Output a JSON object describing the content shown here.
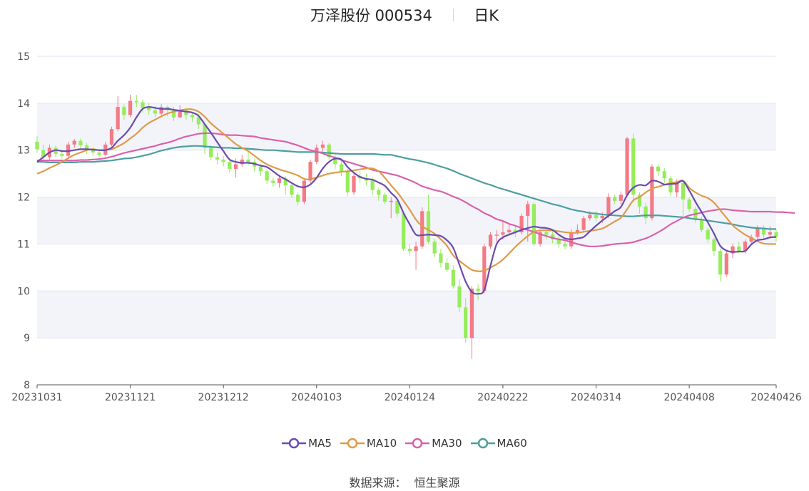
{
  "header": {
    "stock_name_code": "万泽股份 000534",
    "period": "日K"
  },
  "source": {
    "label": "数据来源：",
    "provider": "恒生聚源"
  },
  "colors": {
    "up": "#f47a85",
    "down": "#96ec5a",
    "MA5": "#6a4bb0",
    "MA10": "#e09a49",
    "MA30": "#d961ab",
    "MA60": "#4c9ea0",
    "band": "#f3f4fa",
    "grid": "#dfe3f0"
  },
  "chart_data": {
    "type": "candlestick",
    "title": "万泽股份 000534 日K",
    "ylim": [
      8,
      15
    ],
    "yticks": [
      8,
      9,
      10,
      11,
      12,
      13,
      14,
      15
    ],
    "grid": true,
    "legend_position": "bottom",
    "xtick_labels": [
      {
        "index": 0,
        "label": "20231031"
      },
      {
        "index": 15,
        "label": "20231121"
      },
      {
        "index": 30,
        "label": "20231212"
      },
      {
        "index": 45,
        "label": "20240103"
      },
      {
        "index": 60,
        "label": "20240124"
      },
      {
        "index": 75,
        "label": "20240222"
      },
      {
        "index": 90,
        "label": "20240314"
      },
      {
        "index": 105,
        "label": "20240408"
      },
      {
        "index": 119,
        "label": "20240426"
      }
    ],
    "candles": [
      [
        13.18,
        13.02,
        13.3,
        12.95
      ],
      [
        13.0,
        12.85,
        13.12,
        12.8
      ],
      [
        12.85,
        13.05,
        13.12,
        12.8
      ],
      [
        13.05,
        12.92,
        13.1,
        12.85
      ],
      [
        12.92,
        12.88,
        13.0,
        12.82
      ],
      [
        12.88,
        13.12,
        13.18,
        12.85
      ],
      [
        13.12,
        13.2,
        13.24,
        13.05
      ],
      [
        13.2,
        13.1,
        13.25,
        13.02
      ],
      [
        13.1,
        13.0,
        13.15,
        12.92
      ],
      [
        13.0,
        12.95,
        13.06,
        12.88
      ],
      [
        12.95,
        12.9,
        13.02,
        12.84
      ],
      [
        12.9,
        13.12,
        13.18,
        12.88
      ],
      [
        13.12,
        13.45,
        13.5,
        13.08
      ],
      [
        13.45,
        13.92,
        14.15,
        13.4
      ],
      [
        13.92,
        13.75,
        13.98,
        13.65
      ],
      [
        13.75,
        14.05,
        14.18,
        13.7
      ],
      [
        14.05,
        14.02,
        14.18,
        13.92
      ],
      [
        14.02,
        13.9,
        14.08,
        13.8
      ],
      [
        13.9,
        13.85,
        14.0,
        13.75
      ],
      [
        13.85,
        13.78,
        13.95,
        13.7
      ],
      [
        13.78,
        13.92,
        13.98,
        13.7
      ],
      [
        13.92,
        13.85,
        13.95,
        13.72
      ],
      [
        13.85,
        13.7,
        13.92,
        13.62
      ],
      [
        13.7,
        13.85,
        13.96,
        13.68
      ],
      [
        13.85,
        13.75,
        13.9,
        13.65
      ],
      [
        13.75,
        13.7,
        13.82,
        13.6
      ],
      [
        13.7,
        13.55,
        13.78,
        13.45
      ],
      [
        13.55,
        13.05,
        13.58,
        12.92
      ],
      [
        13.05,
        12.85,
        13.1,
        12.78
      ],
      [
        12.85,
        12.8,
        12.95,
        12.7
      ],
      [
        12.8,
        12.75,
        12.88,
        12.65
      ],
      [
        12.75,
        12.6,
        12.8,
        12.52
      ],
      [
        12.6,
        12.7,
        12.82,
        12.42
      ],
      [
        12.7,
        12.8,
        12.9,
        12.65
      ],
      [
        12.8,
        12.75,
        12.96,
        12.68
      ],
      [
        12.75,
        12.65,
        12.82,
        12.55
      ],
      [
        12.65,
        12.55,
        12.7,
        12.45
      ],
      [
        12.55,
        12.35,
        12.58,
        12.28
      ],
      [
        12.35,
        12.3,
        12.42,
        12.22
      ],
      [
        12.3,
        12.4,
        12.48,
        12.2
      ],
      [
        12.4,
        12.25,
        12.45,
        12.05
      ],
      [
        12.25,
        12.05,
        12.3,
        11.98
      ],
      [
        12.05,
        11.9,
        12.1,
        11.82
      ],
      [
        11.9,
        12.35,
        12.4,
        11.85
      ],
      [
        12.35,
        12.75,
        12.8,
        12.3
      ],
      [
        12.75,
        13.05,
        13.12,
        12.7
      ],
      [
        13.05,
        13.12,
        13.2,
        12.95
      ],
      [
        13.12,
        12.85,
        13.15,
        12.8
      ],
      [
        12.85,
        12.7,
        12.92,
        12.6
      ],
      [
        12.7,
        12.55,
        12.78,
        12.45
      ],
      [
        12.55,
        12.1,
        12.6,
        12.02
      ],
      [
        12.1,
        12.45,
        12.5,
        12.05
      ],
      [
        12.45,
        12.4,
        12.55,
        12.3
      ],
      [
        12.4,
        12.35,
        12.5,
        12.25
      ],
      [
        12.35,
        12.15,
        12.42,
        12.05
      ],
      [
        12.15,
        12.05,
        12.2,
        11.92
      ],
      [
        12.05,
        11.9,
        12.1,
        11.85
      ],
      [
        11.9,
        11.92,
        12.0,
        11.55
      ],
      [
        11.92,
        11.65,
        11.95,
        11.58
      ],
      [
        11.65,
        10.9,
        11.68,
        10.85
      ],
      [
        10.9,
        10.85,
        11.0,
        10.75
      ],
      [
        10.85,
        10.95,
        11.05,
        10.45
      ],
      [
        10.95,
        11.7,
        11.78,
        10.9
      ],
      [
        11.7,
        11.05,
        12.05,
        11.0
      ],
      [
        11.05,
        10.8,
        11.12,
        10.72
      ],
      [
        10.8,
        10.6,
        10.9,
        10.5
      ],
      [
        10.6,
        10.45,
        10.7,
        10.4
      ],
      [
        10.45,
        10.1,
        10.55,
        10.05
      ],
      [
        10.1,
        9.65,
        10.25,
        9.55
      ],
      [
        9.65,
        9.0,
        9.85,
        8.9
      ],
      [
        9.0,
        10.05,
        10.1,
        8.55
      ],
      [
        10.05,
        10.0,
        10.15,
        9.8
      ],
      [
        10.0,
        10.95,
        11.0,
        9.95
      ],
      [
        10.95,
        11.2,
        11.25,
        10.9
      ],
      [
        11.2,
        11.2,
        11.3,
        11.05
      ],
      [
        11.2,
        11.25,
        11.5,
        11.1
      ],
      [
        11.25,
        11.3,
        11.45,
        11.18
      ],
      [
        11.3,
        11.25,
        11.38,
        11.15
      ],
      [
        11.25,
        11.6,
        11.65,
        11.2
      ],
      [
        11.6,
        11.85,
        11.92,
        11.05
      ],
      [
        11.85,
        11.0,
        11.9,
        10.95
      ],
      [
        11.0,
        11.25,
        11.3,
        10.95
      ],
      [
        11.25,
        11.2,
        11.32,
        11.1
      ],
      [
        11.2,
        11.1,
        11.28,
        11.02
      ],
      [
        11.1,
        11.0,
        11.18,
        10.92
      ],
      [
        11.0,
        10.95,
        11.08,
        10.88
      ],
      [
        10.95,
        11.25,
        11.32,
        10.9
      ],
      [
        11.25,
        11.3,
        11.42,
        11.2
      ],
      [
        11.3,
        11.55,
        11.6,
        11.25
      ],
      [
        11.55,
        11.62,
        11.7,
        11.5
      ],
      [
        11.62,
        11.55,
        11.7,
        11.48
      ],
      [
        11.55,
        11.6,
        11.68,
        11.45
      ],
      [
        11.6,
        12.0,
        12.08,
        11.55
      ],
      [
        12.0,
        11.92,
        12.05,
        11.85
      ],
      [
        11.92,
        12.05,
        12.12,
        11.85
      ],
      [
        12.05,
        13.25,
        13.28,
        12.0
      ],
      [
        13.25,
        12.05,
        13.35,
        11.9
      ],
      [
        12.05,
        11.8,
        12.1,
        11.65
      ],
      [
        11.8,
        11.55,
        11.88,
        11.42
      ],
      [
        11.55,
        12.65,
        12.7,
        11.5
      ],
      [
        12.65,
        12.55,
        12.7,
        12.45
      ],
      [
        12.55,
        12.4,
        12.62,
        12.3
      ],
      [
        12.4,
        12.1,
        12.45,
        12.02
      ],
      [
        12.1,
        12.3,
        12.38,
        12.0
      ],
      [
        12.3,
        11.95,
        12.35,
        11.6
      ],
      [
        11.95,
        11.75,
        12.0,
        11.68
      ],
      [
        11.75,
        11.52,
        11.8,
        11.45
      ],
      [
        11.52,
        11.3,
        11.58,
        11.25
      ],
      [
        11.3,
        11.1,
        11.35,
        11.02
      ],
      [
        11.1,
        10.85,
        11.15,
        10.75
      ],
      [
        10.85,
        10.35,
        10.9,
        10.2
      ],
      [
        10.35,
        10.8,
        10.85,
        10.3
      ],
      [
        10.8,
        10.95,
        11.0,
        10.7
      ],
      [
        10.95,
        10.85,
        11.05,
        10.8
      ],
      [
        10.85,
        11.05,
        11.1,
        10.8
      ],
      [
        11.05,
        11.15,
        11.2,
        10.98
      ],
      [
        11.15,
        11.35,
        11.4,
        11.1
      ],
      [
        11.35,
        11.2,
        11.4,
        11.12
      ],
      [
        11.2,
        11.25,
        11.38,
        11.12
      ],
      [
        11.25,
        11.15,
        11.3,
        11.05
      ]
    ],
    "series": [
      {
        "name": "MA5",
        "values": [
          12.75,
          12.85,
          12.95,
          13.0,
          12.98,
          12.98,
          13.0,
          13.02,
          13.02,
          13.01,
          13.0,
          13.0,
          13.05,
          13.2,
          13.32,
          13.48,
          13.7,
          13.88,
          13.92,
          13.9,
          13.88,
          13.88,
          13.86,
          13.84,
          13.82,
          13.8,
          13.73,
          13.55,
          13.37,
          13.17,
          12.98,
          12.8,
          12.75,
          12.73,
          12.73,
          12.71,
          12.67,
          12.64,
          12.55,
          12.45,
          12.38,
          12.3,
          12.23,
          12.21,
          12.27,
          12.41,
          12.61,
          12.75,
          12.82,
          12.8,
          12.64,
          12.52,
          12.43,
          12.39,
          12.37,
          12.31,
          12.24,
          12.09,
          11.95,
          11.66,
          11.42,
          11.2,
          11.19,
          11.2,
          11.19,
          11.17,
          11.08,
          10.92,
          10.56,
          10.2,
          9.98,
          9.94,
          10.02,
          10.54,
          11.0,
          11.14,
          11.2,
          11.25,
          11.3,
          11.34,
          11.37,
          11.35,
          11.34,
          11.3,
          11.2,
          11.12,
          11.1,
          11.12,
          11.15,
          11.27,
          11.39,
          11.5,
          11.6,
          11.7,
          11.79,
          12.04,
          12.2,
          12.26,
          12.25,
          12.35,
          12.33,
          12.27,
          12.28,
          12.29,
          12.34,
          12.14,
          11.9,
          11.68,
          11.46,
          11.22,
          10.96,
          10.86,
          10.83,
          10.84,
          10.85,
          10.99,
          11.08,
          11.1,
          11.14,
          11.15
        ]
      },
      {
        "name": "MA10",
        "values": [
          12.5,
          12.55,
          12.62,
          12.68,
          12.75,
          12.83,
          12.9,
          12.95,
          13.0,
          13.02,
          13.0,
          13.01,
          13.02,
          13.08,
          13.15,
          13.25,
          13.35,
          13.48,
          13.58,
          13.65,
          13.72,
          13.78,
          13.82,
          13.85,
          13.87,
          13.87,
          13.82,
          13.71,
          13.57,
          13.46,
          13.35,
          13.24,
          13.13,
          13.05,
          12.98,
          12.88,
          12.78,
          12.7,
          12.64,
          12.59,
          12.55,
          12.51,
          12.46,
          12.39,
          12.38,
          12.42,
          12.46,
          12.5,
          12.52,
          12.54,
          12.55,
          12.57,
          12.59,
          12.61,
          12.61,
          12.55,
          12.41,
          12.25,
          12.1,
          11.92,
          11.73,
          11.52,
          11.38,
          11.3,
          11.22,
          11.1,
          10.96,
          10.76,
          10.64,
          10.54,
          10.45,
          10.42,
          10.43,
          10.5,
          10.57,
          10.67,
          10.8,
          10.94,
          11.06,
          11.17,
          11.26,
          11.29,
          11.29,
          11.29,
          11.27,
          11.25,
          11.24,
          11.24,
          11.26,
          11.28,
          11.3,
          11.33,
          11.4,
          11.48,
          11.56,
          11.74,
          11.93,
          12.0,
          12.1,
          12.18,
          12.22,
          12.26,
          12.3,
          12.32,
          12.35,
          12.2,
          12.1,
          12.03,
          11.98,
          11.88,
          11.72,
          11.56,
          11.4,
          11.29,
          11.2,
          11.13,
          11.06,
          11.01,
          11.0,
          11.0
        ]
      },
      {
        "name": "MA30",
        "values": [
          12.78,
          12.78,
          12.78,
          12.78,
          12.78,
          12.78,
          12.78,
          12.79,
          12.79,
          12.8,
          12.81,
          12.83,
          12.86,
          12.9,
          12.94,
          12.97,
          13.0,
          13.03,
          13.06,
          13.09,
          13.13,
          13.16,
          13.2,
          13.25,
          13.29,
          13.32,
          13.35,
          13.36,
          13.36,
          13.35,
          13.33,
          13.32,
          13.32,
          13.31,
          13.3,
          13.29,
          13.26,
          13.24,
          13.22,
          13.2,
          13.18,
          13.14,
          13.1,
          13.05,
          13.0,
          12.97,
          12.93,
          12.88,
          12.84,
          12.79,
          12.75,
          12.71,
          12.67,
          12.63,
          12.58,
          12.55,
          12.52,
          12.49,
          12.46,
          12.41,
          12.36,
          12.3,
          12.23,
          12.19,
          12.15,
          12.12,
          12.07,
          12.01,
          11.96,
          11.89,
          11.81,
          11.74,
          11.66,
          11.6,
          11.53,
          11.49,
          11.43,
          11.39,
          11.34,
          11.3,
          11.26,
          11.21,
          11.17,
          11.13,
          11.1,
          11.08,
          11.04,
          11.0,
          10.97,
          10.95,
          10.95,
          10.96,
          10.98,
          11.0,
          11.01,
          11.02,
          11.04,
          11.08,
          11.12,
          11.18,
          11.25,
          11.33,
          11.42,
          11.49,
          11.56,
          11.61,
          11.64,
          11.67,
          11.7,
          11.72,
          11.74,
          11.74,
          11.72,
          11.71,
          11.7,
          11.69,
          11.69,
          11.69,
          11.69,
          11.68,
          11.68,
          11.67,
          11.66
        ]
      },
      {
        "name": "MA60",
        "values": [
          12.75,
          12.75,
          12.74,
          12.74,
          12.74,
          12.74,
          12.74,
          12.75,
          12.75,
          12.75,
          12.76,
          12.77,
          12.78,
          12.8,
          12.82,
          12.83,
          12.85,
          12.88,
          12.91,
          12.95,
          12.99,
          13.02,
          13.05,
          13.07,
          13.08,
          13.09,
          13.09,
          13.08,
          13.07,
          13.06,
          13.05,
          13.05,
          13.04,
          13.04,
          13.03,
          13.02,
          13.01,
          13.0,
          13.0,
          12.99,
          12.98,
          12.97,
          12.96,
          12.96,
          12.96,
          12.96,
          12.95,
          12.94,
          12.93,
          12.92,
          12.92,
          12.92,
          12.92,
          12.92,
          12.92,
          12.91,
          12.9,
          12.9,
          12.87,
          12.84,
          12.81,
          12.79,
          12.76,
          12.73,
          12.69,
          12.65,
          12.61,
          12.56,
          12.5,
          12.45,
          12.4,
          12.35,
          12.3,
          12.26,
          12.21,
          12.17,
          12.13,
          12.09,
          12.05,
          12.01,
          11.97,
          11.93,
          11.89,
          11.85,
          11.82,
          11.78,
          11.74,
          11.71,
          11.69,
          11.66,
          11.65,
          11.63,
          11.62,
          11.61,
          11.6,
          11.59,
          11.59,
          11.6,
          11.61,
          11.61,
          11.61,
          11.6,
          11.59,
          11.58,
          11.57,
          11.55,
          11.53,
          11.52,
          11.5,
          11.48,
          11.46,
          11.44,
          11.42,
          11.39,
          11.37,
          11.35,
          11.34,
          11.33,
          11.32,
          11.32
        ]
      }
    ]
  }
}
